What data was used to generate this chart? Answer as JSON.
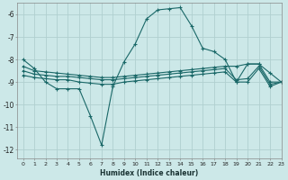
{
  "xlabel": "Humidex (Indice chaleur)",
  "xlim": [
    -0.5,
    23
  ],
  "ylim": [
    -12.4,
    -5.5
  ],
  "bg_color": "#cce8e8",
  "grid_color": "#b0d0d0",
  "line_color": "#1a6868",
  "series1_x": [
    0,
    1,
    2,
    3,
    4,
    5,
    6,
    7,
    8,
    9,
    10,
    11,
    12,
    13,
    14,
    15,
    16,
    17,
    18,
    19,
    20,
    21,
    22,
    23
  ],
  "series1_y": [
    -8.0,
    -8.4,
    -9.0,
    -9.3,
    -9.3,
    -9.3,
    -10.5,
    -11.8,
    -9.2,
    -8.1,
    -7.3,
    -6.2,
    -5.8,
    -5.75,
    -5.7,
    -6.5,
    -7.5,
    -7.65,
    -8.0,
    -9.0,
    -8.2,
    -8.2,
    -8.6,
    -9.0
  ],
  "series2_x": [
    0,
    1,
    2,
    3,
    4,
    5,
    6,
    7,
    8,
    9,
    10,
    11,
    12,
    13,
    14,
    15,
    16,
    17,
    18,
    19,
    20,
    21,
    22,
    23
  ],
  "series2_y": [
    -8.3,
    -8.5,
    -8.55,
    -8.6,
    -8.65,
    -8.7,
    -8.75,
    -8.8,
    -8.8,
    -8.75,
    -8.7,
    -8.65,
    -8.6,
    -8.55,
    -8.5,
    -8.45,
    -8.4,
    -8.35,
    -8.3,
    -8.3,
    -8.2,
    -8.2,
    -9.0,
    -9.0
  ],
  "series3_x": [
    0,
    1,
    2,
    3,
    4,
    5,
    6,
    7,
    8,
    9,
    10,
    11,
    12,
    13,
    14,
    15,
    16,
    17,
    18,
    19,
    20,
    21,
    22,
    23
  ],
  "series3_y": [
    -8.5,
    -8.65,
    -8.7,
    -8.75,
    -8.75,
    -8.8,
    -8.85,
    -8.9,
    -8.9,
    -8.85,
    -8.8,
    -8.75,
    -8.7,
    -8.65,
    -8.6,
    -8.55,
    -8.5,
    -8.45,
    -8.4,
    -8.9,
    -8.85,
    -8.3,
    -9.1,
    -9.0
  ],
  "series4_x": [
    0,
    1,
    2,
    3,
    4,
    5,
    6,
    7,
    8,
    9,
    10,
    11,
    12,
    13,
    14,
    15,
    16,
    17,
    18,
    19,
    20,
    21,
    22,
    23
  ],
  "series4_y": [
    -8.7,
    -8.8,
    -8.85,
    -8.9,
    -8.9,
    -9.0,
    -9.05,
    -9.1,
    -9.1,
    -9.0,
    -8.95,
    -8.9,
    -8.85,
    -8.8,
    -8.75,
    -8.7,
    -8.65,
    -8.6,
    -8.55,
    -9.0,
    -9.0,
    -8.4,
    -9.2,
    -9.0
  ],
  "yticks": [
    -12,
    -11,
    -10,
    -9,
    -8,
    -7,
    -6
  ],
  "xticks": [
    0,
    1,
    2,
    3,
    4,
    5,
    6,
    7,
    8,
    9,
    10,
    11,
    12,
    13,
    14,
    15,
    16,
    17,
    18,
    19,
    20,
    21,
    22,
    23
  ]
}
